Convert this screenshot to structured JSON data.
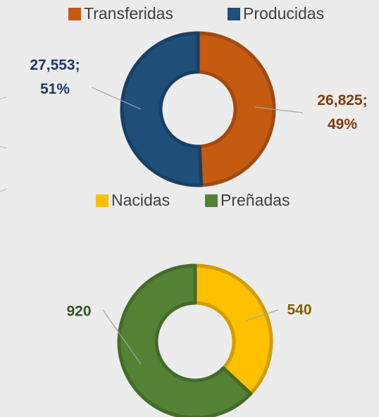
{
  "chart_data": [
    {
      "type": "donut",
      "categories": [
        "Transferidas",
        "Producidas"
      ],
      "series": [
        {
          "values": [
            26825,
            27553
          ],
          "colors": [
            "#c55a11",
            "#1f4e79"
          ],
          "value_labels": [
            "26,825;",
            "27,553;"
          ],
          "percentages": [
            49,
            51
          ],
          "percentage_labels": [
            "49%",
            "51%"
          ],
          "label_colors": [
            "#843c0c",
            "#1f3864"
          ]
        }
      ],
      "legend": "top"
    },
    {
      "type": "donut",
      "categories": [
        "Nacidas",
        "Preñadas"
      ],
      "series": [
        {
          "values": [
            540,
            920
          ],
          "colors": [
            "#ffc000",
            "#548235"
          ],
          "value_labels": [
            "540",
            "920"
          ],
          "label_colors": [
            "#7f6000",
            "#375623"
          ]
        }
      ],
      "legend": "top"
    }
  ]
}
